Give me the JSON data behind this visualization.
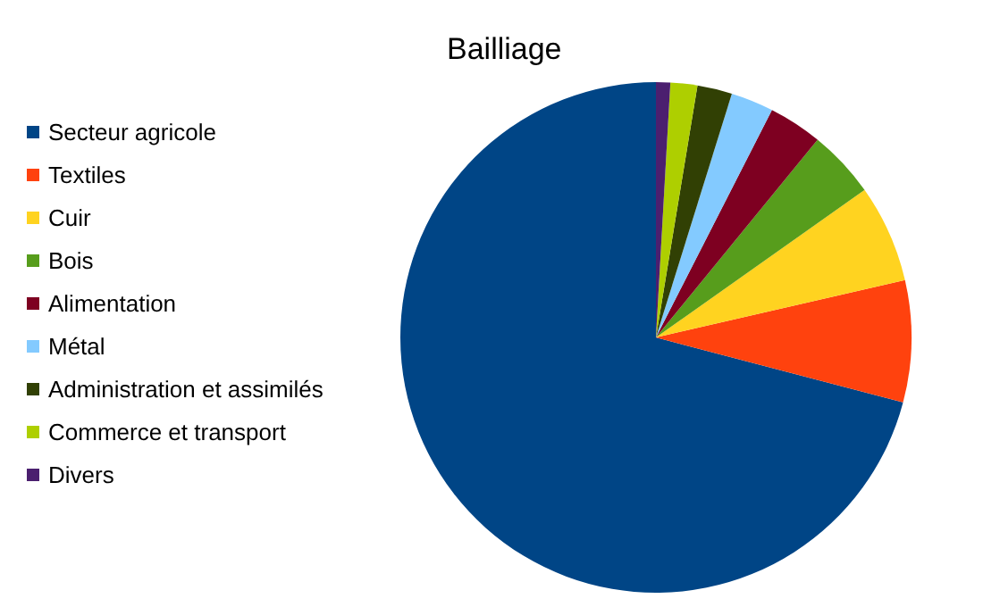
{
  "chart_data": {
    "type": "pie",
    "title": "Bailliage",
    "legend": "left",
    "categories": [
      "Secteur agricole",
      "Textiles",
      "Cuir",
      "Bois",
      "Alimentation",
      "Métal",
      "Administration et assimilés",
      "Commerce et transport",
      "Divers"
    ],
    "values": [
      70.9,
      7.7,
      6.2,
      4.3,
      3.4,
      2.7,
      2.2,
      1.7,
      0.9
    ],
    "colors": [
      "#004586",
      "#ff420e",
      "#ffd320",
      "#579d1c",
      "#7e0021",
      "#83caff",
      "#314004",
      "#aecf00",
      "#4b1f6f"
    ]
  }
}
